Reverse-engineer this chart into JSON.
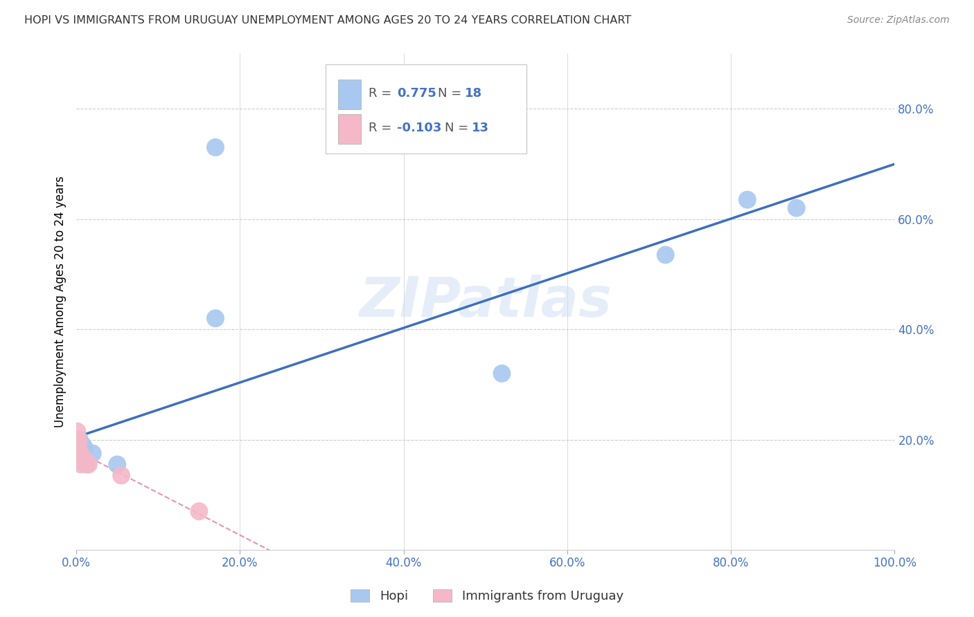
{
  "title": "HOPI VS IMMIGRANTS FROM URUGUAY UNEMPLOYMENT AMONG AGES 20 TO 24 YEARS CORRELATION CHART",
  "source": "Source: ZipAtlas.com",
  "xlabel_ticks": [
    "0.0%",
    "20.0%",
    "40.0%",
    "60.0%",
    "80.0%",
    "100.0%"
  ],
  "xlabel_vals": [
    0.0,
    0.2,
    0.4,
    0.6,
    0.8,
    1.0
  ],
  "ylabel_ticks": [
    "20.0%",
    "40.0%",
    "60.0%",
    "80.0%"
  ],
  "ylabel_vals": [
    0.2,
    0.4,
    0.6,
    0.8
  ],
  "ylabel_label": "Unemployment Among Ages 20 to 24 years",
  "legend_label1": "Hopi",
  "legend_label2": "Immigrants from Uruguay",
  "R_hopi": "0.775",
  "N_hopi": "18",
  "R_uru": "-0.103",
  "N_uru": "13",
  "hopi_color": "#a8c8f0",
  "hopi_line_color": "#3c6fbe",
  "uru_color": "#f4b8c8",
  "uru_line_color": "#e07090",
  "watermark": "ZIPatlas",
  "hopi_x": [
    0.002,
    0.003,
    0.004,
    0.005,
    0.006,
    0.007,
    0.008,
    0.01,
    0.01,
    0.013,
    0.02,
    0.05,
    0.17,
    0.17,
    0.52,
    0.72,
    0.82,
    0.88
  ],
  "hopi_y": [
    0.185,
    0.19,
    0.2,
    0.175,
    0.185,
    0.16,
    0.19,
    0.16,
    0.185,
    0.155,
    0.175,
    0.155,
    0.42,
    0.73,
    0.32,
    0.535,
    0.635,
    0.62
  ],
  "uru_x": [
    0.001,
    0.002,
    0.003,
    0.004,
    0.005,
    0.006,
    0.007,
    0.008,
    0.01,
    0.012,
    0.015,
    0.055,
    0.15
  ],
  "uru_y": [
    0.215,
    0.2,
    0.195,
    0.175,
    0.175,
    0.155,
    0.16,
    0.165,
    0.165,
    0.16,
    0.155,
    0.135,
    0.07
  ],
  "xlim": [
    0.0,
    1.0
  ],
  "ylim": [
    0.0,
    0.9
  ],
  "tick_color": "#4472c4",
  "grid_color": "#cccccc",
  "legend_R_color": "#4472c4",
  "title_color": "#333333",
  "source_color": "#888888"
}
